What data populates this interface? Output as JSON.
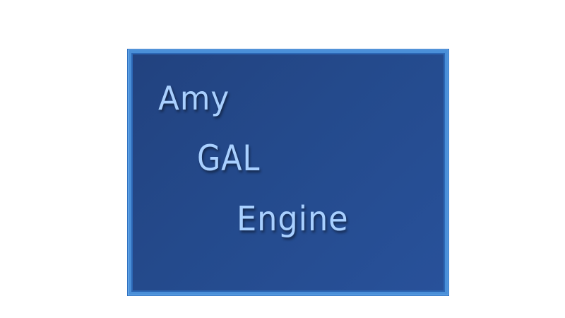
{
  "logo": {
    "lines": [
      "Amy",
      "GAL",
      "Engine"
    ]
  },
  "colors": {
    "background": "#ffffff",
    "frame": "#4a8fd8",
    "panel_dark": "#22427f",
    "panel_light": "#28519a",
    "text": "#a9d0ff"
  }
}
